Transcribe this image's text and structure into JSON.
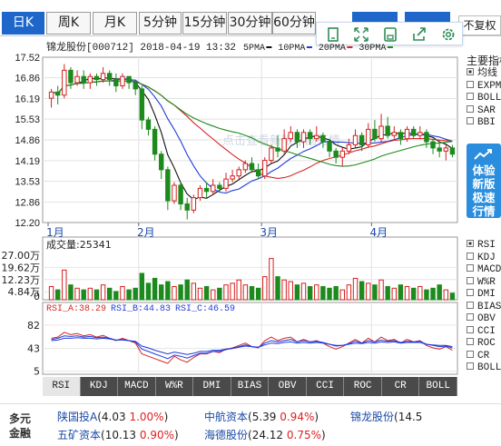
{
  "tabs": [
    {
      "label": "日K",
      "active": true
    },
    {
      "label": "周K",
      "active": false
    },
    {
      "label": "月K",
      "active": false
    },
    {
      "label": "5分钟",
      "active": false
    },
    {
      "label": "15分钟",
      "active": false
    },
    {
      "label": "30分钟",
      "active": false
    },
    {
      "label": "60分钟",
      "active": false
    }
  ],
  "adjust_label": "不复权",
  "toolbar_icons": [
    "square-icon",
    "expand-icon",
    "save-icon",
    "share-icon",
    "settings-icon"
  ],
  "header": {
    "stock": "锦龙股份[000712]",
    "datetime": "2018-04-19 13:32",
    "ma_labels": [
      "5PMA",
      "10PMA",
      "20PMA",
      "30PMA"
    ]
  },
  "watermark": "点击查看新版原画行情",
  "ma_colors": {
    "ma5": "#111111",
    "ma10": "#1f3bdc",
    "ma20": "#d62525",
    "ma30": "#1c8a1c"
  },
  "candle_colors": {
    "up": "#d42020",
    "down": "#1c8a1c"
  },
  "price_axis": [
    "17.52",
    "16.86",
    "16.19",
    "15.53",
    "14.86",
    "14.19",
    "13.53",
    "12.86",
    "12.20"
  ],
  "month_labels": [
    "1月",
    "2月",
    "3月",
    "4月"
  ],
  "main_indicators": {
    "title": "主要指标",
    "items": [
      {
        "label": "均线",
        "checked": true
      },
      {
        "label": "EXPMA",
        "checked": false
      },
      {
        "label": "BOLL",
        "checked": false
      },
      {
        "label": "SAR",
        "checked": false
      },
      {
        "label": "BBI",
        "checked": false
      }
    ]
  },
  "promo_text": "体验新版极速行情",
  "volume": {
    "title": "成交量",
    "value": "25341",
    "axis": [
      "27.00万",
      "19.62万",
      "12.23万",
      "4.84万",
      "0"
    ]
  },
  "rsi": {
    "label_a": "RSI_A:38.29",
    "label_b": "RSI_B:44.83",
    "label_c": "RSI_C:46.59",
    "axis": [
      "82",
      "43",
      "5"
    ]
  },
  "sub_indicators": [
    {
      "label": "RSI",
      "checked": true
    },
    {
      "label": "KDJ",
      "checked": false
    },
    {
      "label": "MACD",
      "checked": false
    },
    {
      "label": "W%R",
      "checked": false
    },
    {
      "label": "DMI",
      "checked": false
    },
    {
      "label": "BIAS",
      "checked": false
    },
    {
      "label": "OBV",
      "checked": false
    },
    {
      "label": "CCI",
      "checked": false
    },
    {
      "label": "ROC",
      "checked": false
    },
    {
      "label": "CR",
      "checked": false
    },
    {
      "label": "BOLL",
      "checked": false
    }
  ],
  "indicator_tabs": [
    {
      "label": "RSI",
      "active": true
    },
    {
      "label": "KDJ",
      "active": false
    },
    {
      "label": "MACD",
      "active": false
    },
    {
      "label": "W%R",
      "active": false
    },
    {
      "label": "DMI",
      "active": false
    },
    {
      "label": "BIAS",
      "active": false
    },
    {
      "label": "OBV",
      "active": false
    },
    {
      "label": "CCI",
      "active": false
    },
    {
      "label": "ROC",
      "active": false
    },
    {
      "label": "CR",
      "active": false
    },
    {
      "label": "BOLL",
      "active": false
    }
  ],
  "footer": {
    "label": "多元金融",
    "stocks": [
      {
        "name": "陕国投A",
        "detail": "(4.03 ",
        "rate": "1.00%",
        "close": ")"
      },
      {
        "name": "中航资本",
        "detail": "(5.39 ",
        "rate": "0.94%",
        "close": ")"
      },
      {
        "name": "锦龙股份",
        "detail": "(14.5",
        "rate": "",
        "close": ""
      },
      {
        "name": "五矿资本",
        "detail": "(10.13 ",
        "rate": "0.90%",
        "close": ")"
      },
      {
        "name": "海德股份",
        "detail": "(24.12 ",
        "rate": "0.75%",
        "close": ")"
      }
    ]
  },
  "chart_data": {
    "type": "candlestick",
    "price_range": [
      12.2,
      17.52
    ],
    "candles": [
      {
        "o": 16.2,
        "c": 16.4,
        "h": 16.5,
        "l": 15.9
      },
      {
        "o": 16.4,
        "c": 16.3,
        "h": 16.6,
        "l": 16.0
      },
      {
        "o": 16.3,
        "c": 17.1,
        "h": 17.3,
        "l": 16.2
      },
      {
        "o": 17.1,
        "c": 16.7,
        "h": 17.2,
        "l": 16.5
      },
      {
        "o": 16.7,
        "c": 16.9,
        "h": 17.1,
        "l": 16.6
      },
      {
        "o": 16.9,
        "c": 16.7,
        "h": 17.1,
        "l": 16.5
      },
      {
        "o": 16.7,
        "c": 16.9,
        "h": 17.0,
        "l": 16.5
      },
      {
        "o": 16.9,
        "c": 16.8,
        "h": 17.0,
        "l": 16.6
      },
      {
        "o": 16.8,
        "c": 17.0,
        "h": 17.2,
        "l": 16.7
      },
      {
        "o": 17.0,
        "c": 16.8,
        "h": 17.1,
        "l": 16.6
      },
      {
        "o": 16.8,
        "c": 16.6,
        "h": 17.0,
        "l": 16.4
      },
      {
        "o": 16.6,
        "c": 16.9,
        "h": 17.0,
        "l": 16.5
      },
      {
        "o": 16.9,
        "c": 16.7,
        "h": 16.9,
        "l": 16.5
      },
      {
        "o": 16.7,
        "c": 16.5,
        "h": 16.8,
        "l": 16.3
      },
      {
        "o": 16.5,
        "c": 15.5,
        "h": 16.6,
        "l": 15.2
      },
      {
        "o": 15.5,
        "c": 15.2,
        "h": 15.6,
        "l": 15.0
      },
      {
        "o": 15.2,
        "c": 14.4,
        "h": 15.3,
        "l": 14.2
      },
      {
        "o": 14.4,
        "c": 13.9,
        "h": 14.5,
        "l": 13.6
      },
      {
        "o": 13.9,
        "c": 12.9,
        "h": 14.0,
        "l": 12.6
      },
      {
        "o": 12.9,
        "c": 13.4,
        "h": 13.5,
        "l": 12.8
      },
      {
        "o": 13.4,
        "c": 12.8,
        "h": 13.5,
        "l": 12.6
      },
      {
        "o": 12.8,
        "c": 12.6,
        "h": 13.0,
        "l": 12.3
      },
      {
        "o": 12.6,
        "c": 13.0,
        "h": 13.1,
        "l": 12.5
      },
      {
        "o": 13.0,
        "c": 13.3,
        "h": 13.4,
        "l": 12.9
      },
      {
        "o": 13.3,
        "c": 13.2,
        "h": 13.5,
        "l": 13.0
      },
      {
        "o": 13.2,
        "c": 13.4,
        "h": 13.6,
        "l": 13.1
      },
      {
        "o": 13.4,
        "c": 13.3,
        "h": 13.5,
        "l": 13.2
      },
      {
        "o": 13.3,
        "c": 13.6,
        "h": 13.8,
        "l": 13.2
      },
      {
        "o": 13.6,
        "c": 13.7,
        "h": 13.9,
        "l": 13.5
      },
      {
        "o": 13.7,
        "c": 13.9,
        "h": 14.0,
        "l": 13.6
      },
      {
        "o": 13.9,
        "c": 14.1,
        "h": 14.2,
        "l": 13.8
      },
      {
        "o": 14.1,
        "c": 13.9,
        "h": 14.3,
        "l": 13.8
      },
      {
        "o": 13.9,
        "c": 13.7,
        "h": 14.1,
        "l": 13.6
      },
      {
        "o": 13.7,
        "c": 14.2,
        "h": 14.3,
        "l": 13.6
      },
      {
        "o": 14.2,
        "c": 14.6,
        "h": 14.7,
        "l": 14.1
      },
      {
        "o": 14.6,
        "c": 14.5,
        "h": 15.0,
        "l": 14.3
      },
      {
        "o": 14.5,
        "c": 14.9,
        "h": 15.2,
        "l": 14.4
      },
      {
        "o": 14.9,
        "c": 15.1,
        "h": 15.3,
        "l": 14.8
      },
      {
        "o": 15.1,
        "c": 14.8,
        "h": 15.2,
        "l": 14.6
      },
      {
        "o": 14.8,
        "c": 15.1,
        "h": 15.2,
        "l": 14.6
      },
      {
        "o": 15.1,
        "c": 14.9,
        "h": 15.2,
        "l": 14.7
      },
      {
        "o": 14.9,
        "c": 15.0,
        "h": 15.3,
        "l": 14.8
      },
      {
        "o": 15.0,
        "c": 14.8,
        "h": 15.1,
        "l": 14.6
      },
      {
        "o": 14.8,
        "c": 14.5,
        "h": 14.9,
        "l": 14.3
      },
      {
        "o": 14.5,
        "c": 14.3,
        "h": 14.6,
        "l": 14.1
      },
      {
        "o": 14.3,
        "c": 14.5,
        "h": 14.6,
        "l": 14.0
      },
      {
        "o": 14.5,
        "c": 14.7,
        "h": 14.9,
        "l": 14.4
      },
      {
        "o": 14.7,
        "c": 15.0,
        "h": 15.2,
        "l": 14.6
      },
      {
        "o": 15.0,
        "c": 14.7,
        "h": 15.1,
        "l": 14.5
      },
      {
        "o": 14.7,
        "c": 15.2,
        "h": 15.4,
        "l": 14.6
      },
      {
        "o": 15.2,
        "c": 14.9,
        "h": 15.5,
        "l": 14.8
      },
      {
        "o": 14.9,
        "c": 15.3,
        "h": 15.7,
        "l": 14.8
      },
      {
        "o": 15.3,
        "c": 15.0,
        "h": 15.6,
        "l": 14.9
      },
      {
        "o": 15.0,
        "c": 15.1,
        "h": 15.3,
        "l": 14.9
      },
      {
        "o": 15.1,
        "c": 14.9,
        "h": 15.2,
        "l": 14.7
      },
      {
        "o": 14.9,
        "c": 15.2,
        "h": 15.3,
        "l": 14.8
      },
      {
        "o": 15.2,
        "c": 15.0,
        "h": 15.3,
        "l": 14.9
      },
      {
        "o": 15.0,
        "c": 15.1,
        "h": 15.3,
        "l": 14.9
      },
      {
        "o": 15.1,
        "c": 14.8,
        "h": 15.2,
        "l": 14.6
      },
      {
        "o": 14.8,
        "c": 14.6,
        "h": 14.9,
        "l": 14.4
      },
      {
        "o": 14.6,
        "c": 14.5,
        "h": 14.8,
        "l": 14.3
      },
      {
        "o": 14.5,
        "c": 14.6,
        "h": 14.7,
        "l": 14.2
      },
      {
        "o": 14.6,
        "c": 14.4,
        "h": 14.7,
        "l": 14.3
      }
    ],
    "volume_range": [
      0,
      27.0
    ],
    "volumes": [
      8,
      6,
      18,
      9,
      7,
      6,
      7,
      6,
      9,
      7,
      5,
      8,
      6,
      7,
      16,
      10,
      13,
      9,
      11,
      8,
      9,
      12,
      10,
      7,
      8,
      6,
      7,
      9,
      10,
      12,
      9,
      8,
      7,
      14,
      25,
      14,
      12,
      11,
      9,
      10,
      8,
      9,
      8,
      7,
      8,
      6,
      9,
      13,
      11,
      10,
      9,
      12,
      8,
      7,
      9,
      8,
      7,
      8,
      6,
      7,
      9,
      6,
      4
    ],
    "rsi_range": [
      0,
      100
    ],
    "rsi_a": [
      60,
      62,
      70,
      66,
      68,
      64,
      66,
      62,
      65,
      60,
      56,
      60,
      56,
      52,
      34,
      30,
      26,
      22,
      18,
      30,
      24,
      20,
      28,
      34,
      34,
      38,
      36,
      42,
      44,
      48,
      52,
      46,
      44,
      56,
      62,
      56,
      60,
      62,
      54,
      58,
      54,
      56,
      52,
      46,
      42,
      46,
      52,
      58,
      52,
      60,
      54,
      62,
      56,
      58,
      52,
      58,
      54,
      56,
      48,
      44,
      42,
      46,
      40
    ],
    "rsi_b": [
      58,
      60,
      64,
      63,
      64,
      62,
      63,
      61,
      62,
      60,
      57,
      58,
      56,
      54,
      42,
      38,
      34,
      30,
      26,
      32,
      30,
      27,
      31,
      35,
      35,
      38,
      38,
      41,
      43,
      46,
      49,
      46,
      45,
      52,
      56,
      54,
      56,
      58,
      54,
      56,
      54,
      55,
      53,
      50,
      47,
      48,
      51,
      55,
      52,
      56,
      54,
      57,
      55,
      56,
      53,
      55,
      54,
      55,
      50,
      48,
      46,
      47,
      44
    ],
    "rsi_c": [
      56,
      57,
      60,
      60,
      61,
      60,
      60,
      59,
      60,
      59,
      57,
      57,
      56,
      55,
      47,
      44,
      40,
      37,
      34,
      37,
      35,
      33,
      35,
      38,
      38,
      40,
      40,
      42,
      43,
      45,
      47,
      46,
      45,
      49,
      52,
      51,
      53,
      54,
      52,
      53,
      52,
      53,
      52,
      50,
      48,
      48,
      50,
      52,
      51,
      53,
      52,
      54,
      53,
      54,
      52,
      53,
      53,
      53,
      50,
      49,
      48,
      48,
      46
    ]
  }
}
